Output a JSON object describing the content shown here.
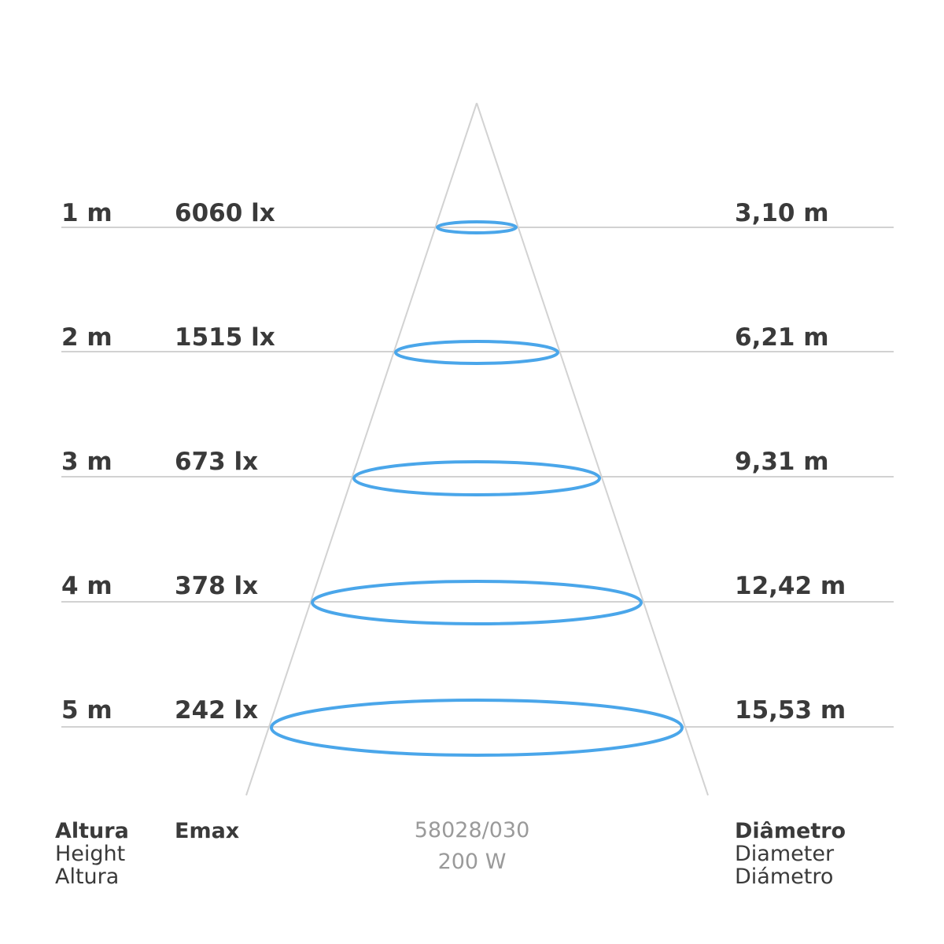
{
  "rows": [
    {
      "height": "1 m",
      "emax": "6060 lx",
      "diameter": "3,10 m"
    },
    {
      "height": "2 m",
      "emax": "1515 lx",
      "diameter": "6,21 m"
    },
    {
      "height": "3 m",
      "emax": "673 lx",
      "diameter": "9,31 m"
    },
    {
      "height": "4 m",
      "emax": "378 lx",
      "diameter": "12,42 m"
    },
    {
      "height": "5 m",
      "emax": "242 lx",
      "diameter": "15,53 m"
    }
  ],
  "footer": {
    "height": {
      "pt": "Altura",
      "en": "Height",
      "es": "Altura"
    },
    "emax": "Emax",
    "product_code": "58028/030",
    "power": "200 W",
    "diameter": {
      "pt": "Diâmetro",
      "en": "Diameter",
      "es": "Diámetro"
    }
  },
  "colors": {
    "beam": "#4aa6ea",
    "lines": "#d2d2d2",
    "text": "#3a3a3a",
    "muted": "#9a9a9a"
  }
}
